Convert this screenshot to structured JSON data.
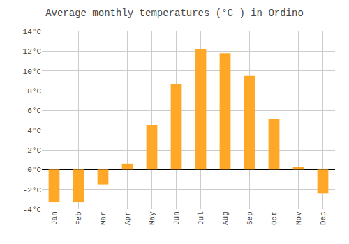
{
  "chart_data": {
    "type": "bar",
    "title": "Average monthly temperatures (°C ) in Ordino",
    "categories": [
      "Jan",
      "Feb",
      "Mar",
      "Apr",
      "May",
      "Jun",
      "Jul",
      "Aug",
      "Sep",
      "Oct",
      "Nov",
      "Dec"
    ],
    "values": [
      -3.3,
      -3.3,
      -1.5,
      0.6,
      4.5,
      8.7,
      12.2,
      11.8,
      9.5,
      5.1,
      0.3,
      -2.4
    ],
    "color": "#FFA726",
    "ylim": [
      -4,
      14
    ],
    "yticks": [
      {
        "value": -4,
        "label": "-4°C"
      },
      {
        "value": -2,
        "label": "-2°C"
      },
      {
        "value": 0,
        "label": "0°C"
      },
      {
        "value": 2,
        "label": "2°C"
      },
      {
        "value": 4,
        "label": "4°C"
      },
      {
        "value": 6,
        "label": "6°C"
      },
      {
        "value": 8,
        "label": "8°C"
      },
      {
        "value": 10,
        "label": "10°C"
      },
      {
        "value": 12,
        "label": "12°C"
      },
      {
        "value": 14,
        "label": "14°C"
      }
    ],
    "grid": true
  }
}
